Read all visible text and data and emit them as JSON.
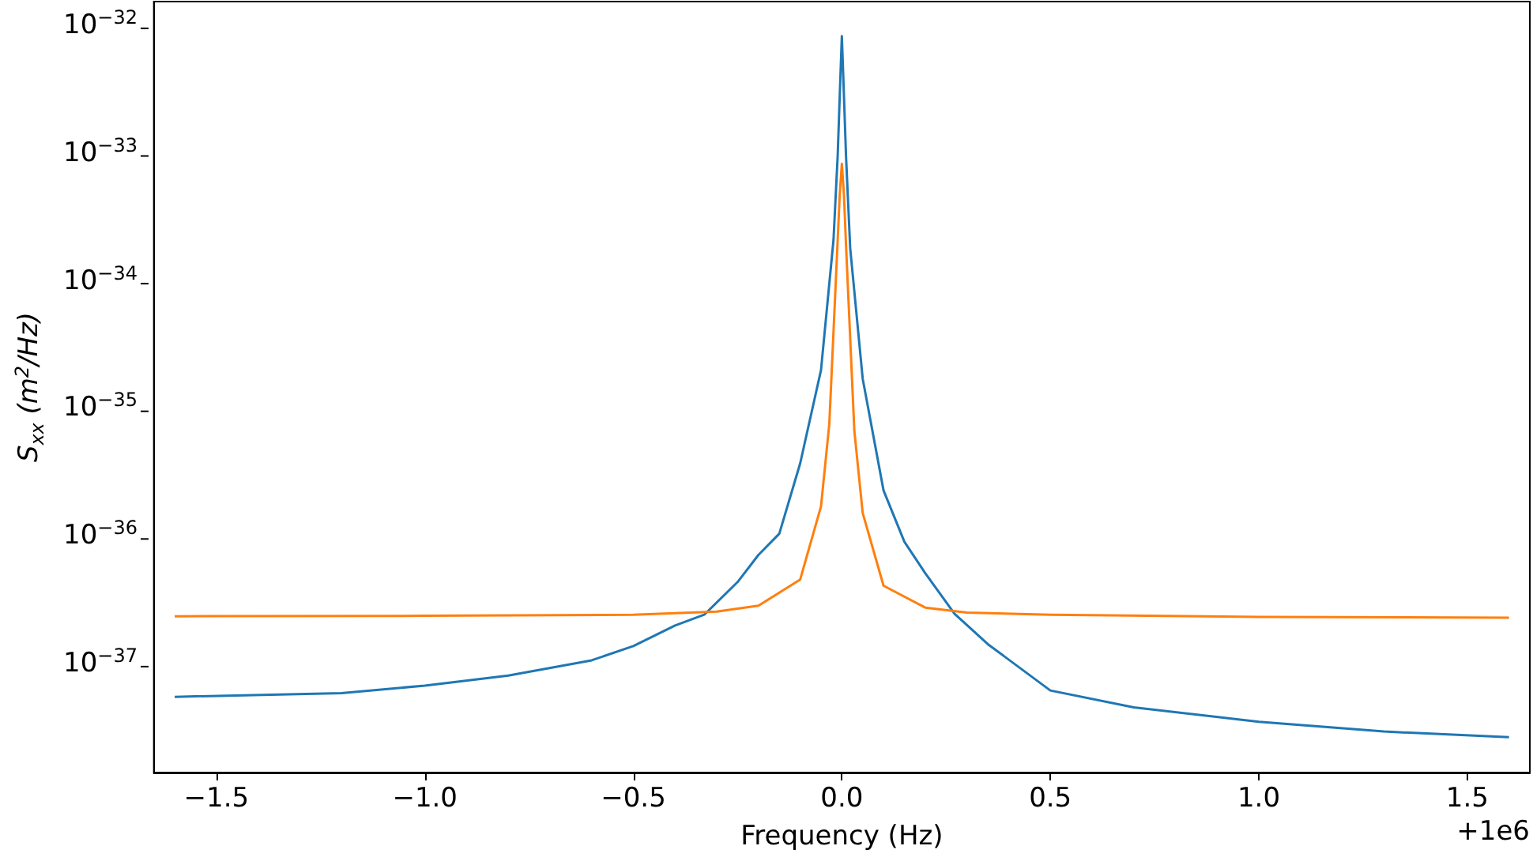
{
  "chart_data": {
    "type": "line",
    "xlabel": "Frequency (Hz)",
    "ylabel": "S$_{xx}$ (m$^{2}$/Hz)",
    "annotations": [
      "+1e6"
    ],
    "log": "y",
    "grid": false,
    "marker": "none",
    "line_style": "solid",
    "xlim": [
      -1.65,
      1.65
    ],
    "ylim": [
      1.48e-38,
      1.62e-32
    ],
    "xticks": [
      {
        "value": -1.5,
        "label": "−1.5"
      },
      {
        "value": -1.0,
        "label": "−1.0"
      },
      {
        "value": -0.5,
        "label": "−0.5"
      },
      {
        "value": 0,
        "label": "0.0"
      },
      {
        "value": 0.5,
        "label": "0.5"
      },
      {
        "value": 1.0,
        "label": "1.0"
      },
      {
        "value": 1.5,
        "label": "1.5"
      }
    ],
    "yticks": [
      {
        "value": 1e-37,
        "label": "10$^{−37}$"
      },
      {
        "value": 1e-36,
        "label": "10$^{−36}$"
      },
      {
        "value": 1e-35,
        "label": "10$^{−35}$"
      },
      {
        "value": 1e-34,
        "label": "10$^{−34}$"
      },
      {
        "value": 1e-33,
        "label": "10$^{−33}$"
      },
      {
        "value": 1e-32,
        "label": "10$^{−32}$"
      }
    ],
    "series": [
      {
        "color": "#1f77b4",
        "x": [
          -1.6,
          -1.2,
          -1.0,
          -0.8,
          -0.6,
          -0.5,
          -0.4,
          -0.33,
          -0.25,
          -0.2,
          -0.15,
          -0.1,
          -0.05,
          -0.02,
          -0.01,
          -0.005,
          0,
          0.005,
          0.01,
          0.02,
          0.05,
          0.1,
          0.15,
          0.2,
          0.27,
          0.35,
          0.5,
          0.7,
          1.0,
          1.3,
          1.6
        ],
        "values": [
          5.8e-38,
          6.2e-38,
          7.1e-38,
          8.5e-38,
          1.12e-37,
          1.45e-37,
          2.1e-37,
          2.55e-37,
          4.6e-37,
          7.5e-37,
          1.1e-36,
          3.9e-36,
          2.1e-35,
          2.2e-34,
          1e-33,
          3e-33,
          8.7e-33,
          3e-33,
          1e-33,
          1.9e-34,
          1.8e-35,
          2.4e-36,
          9.5e-37,
          5.4e-37,
          2.6e-37,
          1.5e-37,
          6.5e-38,
          4.8e-38,
          3.7e-38,
          3.1e-38,
          2.8e-38
        ]
      },
      {
        "color": "#ff7f0e",
        "x": [
          -1.6,
          -1.0,
          -0.5,
          -0.3,
          -0.2,
          -0.1,
          -0.05,
          -0.03,
          -0.01,
          -0.005,
          0,
          0.005,
          0.01,
          0.03,
          0.05,
          0.1,
          0.2,
          0.3,
          0.5,
          1.0,
          1.6
        ],
        "values": [
          2.48e-37,
          2.5e-37,
          2.55e-37,
          2.7e-37,
          3e-37,
          4.8e-37,
          1.8e-36,
          8e-36,
          2.2e-34,
          5e-34,
          8.7e-34,
          5e-34,
          2e-34,
          7e-36,
          1.6e-36,
          4.3e-37,
          2.9e-37,
          2.65e-37,
          2.55e-37,
          2.45e-37,
          2.42e-37
        ]
      }
    ]
  }
}
